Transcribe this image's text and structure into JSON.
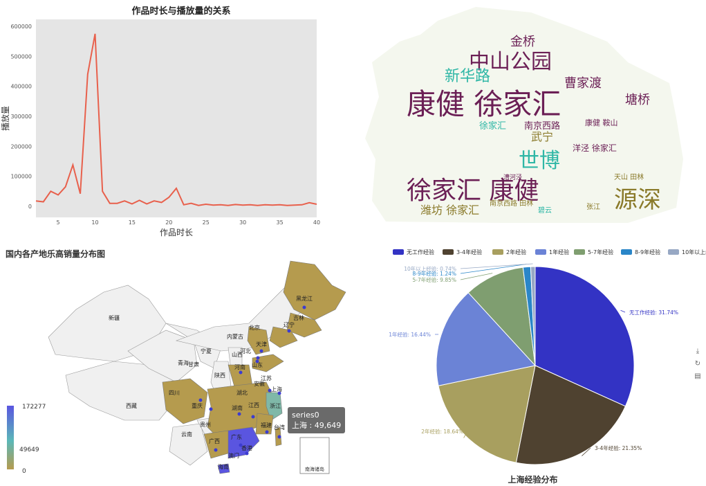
{
  "line_chart": {
    "title": "作品时长与播放量的关系",
    "xlabel": "作品时长",
    "ylabel": "播放量",
    "line_color": "#e8604c",
    "bg_color": "#e5e5e5",
    "x_ticks": [
      "5",
      "10",
      "15",
      "20",
      "25",
      "30",
      "35",
      "40"
    ],
    "y_ticks": [
      "0",
      "100000",
      "200000",
      "300000",
      "400000",
      "500000",
      "600000"
    ]
  },
  "wordcloud": {
    "words": [
      {
        "text": "康健 徐家汇",
        "color": "#6b1f55",
        "size": 42
      },
      {
        "text": "徐家汇 康健",
        "color": "#6b1f55",
        "size": 36
      },
      {
        "text": "中山公园",
        "color": "#6b1f55",
        "size": 30
      },
      {
        "text": "源深",
        "color": "#8a7a2a",
        "size": 34
      },
      {
        "text": "世博",
        "color": "#2fb7a6",
        "size": 30
      },
      {
        "text": "新华路",
        "color": "#2fb7a6",
        "size": 22
      },
      {
        "text": "曹家渡",
        "color": "#6b1f55",
        "size": 18
      },
      {
        "text": "金桥",
        "color": "#6b1f55",
        "size": 18
      },
      {
        "text": "塘桥",
        "color": "#6b1f55",
        "size": 18
      },
      {
        "text": "武宁",
        "color": "#8a7a2a",
        "size": 16
      },
      {
        "text": "潍坊 徐家汇",
        "color": "#8a7a2a",
        "size": 16
      },
      {
        "text": "南京西路",
        "color": "#6b1f55",
        "size": 13
      },
      {
        "text": "徐家汇",
        "color": "#2fb7a6",
        "size": 13
      },
      {
        "text": "洋泾 徐家汇",
        "color": "#6b1f55",
        "size": 12
      },
      {
        "text": "天山 田林",
        "color": "#8a7a2a",
        "size": 10
      },
      {
        "text": "康健 鞍山",
        "color": "#6b1f55",
        "size": 11
      },
      {
        "text": "南京西路 田林",
        "color": "#8a7a2a",
        "size": 10
      },
      {
        "text": "张江",
        "color": "#8a7a2a",
        "size": 10
      },
      {
        "text": "碧云",
        "color": "#2fb7a6",
        "size": 10
      },
      {
        "text": "漕河泾",
        "color": "#6b1f55",
        "size": 9
      }
    ]
  },
  "map": {
    "title": "国内各产地乐高销量分布图",
    "visualmap": {
      "max": "172277",
      "mid": "49649",
      "min": "0"
    },
    "tooltip": {
      "series": "series0",
      "text": "上海 : 49,649"
    },
    "inset_label": "南海诸岛",
    "colors": {
      "high": "#5a55e0",
      "mid": "#5bb8b8",
      "low": "#b59b4e",
      "none": "#f0f0f0"
    },
    "provinces": [
      {
        "name": "新疆"
      },
      {
        "name": "西藏"
      },
      {
        "name": "青海"
      },
      {
        "name": "甘肃"
      },
      {
        "name": "内蒙古"
      },
      {
        "name": "黑龙江"
      },
      {
        "name": "吉林"
      },
      {
        "name": "辽宁"
      },
      {
        "name": "宁夏"
      },
      {
        "name": "山西"
      },
      {
        "name": "河北"
      },
      {
        "name": "北京"
      },
      {
        "name": "天津"
      },
      {
        "name": "山东"
      },
      {
        "name": "陕西"
      },
      {
        "name": "河南"
      },
      {
        "name": "江苏"
      },
      {
        "name": "安徽"
      },
      {
        "name": "上海"
      },
      {
        "name": "四川"
      },
      {
        "name": "湖北"
      },
      {
        "name": "浙江"
      },
      {
        "name": "重庆"
      },
      {
        "name": "湖南"
      },
      {
        "name": "江西"
      },
      {
        "name": "贵州"
      },
      {
        "name": "福建"
      },
      {
        "name": "云南"
      },
      {
        "name": "广西"
      },
      {
        "name": "广东"
      },
      {
        "name": "台湾"
      },
      {
        "name": "香港"
      },
      {
        "name": "澳门"
      },
      {
        "name": "海南"
      }
    ]
  },
  "pie": {
    "title": "上海经验分布",
    "legend": [
      {
        "name": "无工作经验",
        "color": "#3333c4"
      },
      {
        "name": "3-4年经验",
        "color": "#4f4230"
      },
      {
        "name": "2年经验",
        "color": "#a89f5f"
      },
      {
        "name": "1年经验",
        "color": "#6b83d6"
      },
      {
        "name": "5-7年经验",
        "color": "#7f9e70"
      },
      {
        "name": "8-9年经验",
        "color": "#2a86c8"
      },
      {
        "name": "10年以上经验",
        "color": "#97a8c4"
      }
    ],
    "labels": [
      "无工作经验: 31.74%",
      "3-4年经验: 21.35%",
      "2年经验: 18.64%",
      "1年经验: 16.44%",
      "5-7年经验: 9.85%",
      "8-9年经验: 1.24%",
      "10年以上经验: 0.74%"
    ]
  },
  "chart_data": [
    {
      "type": "line",
      "title": "作品时长与播放量的关系",
      "xlabel": "作品时长",
      "ylabel": "播放量",
      "x": [
        2,
        3,
        4,
        5,
        6,
        7,
        8,
        9,
        10,
        11,
        12,
        13,
        14,
        15,
        16,
        17,
        18,
        19,
        20,
        21,
        22,
        23,
        24,
        25,
        26,
        27,
        28,
        29,
        30,
        31,
        32,
        33,
        34,
        35,
        36,
        37,
        38,
        39,
        40
      ],
      "values": [
        18000,
        15000,
        50000,
        38000,
        65000,
        138000,
        42000,
        440000,
        575000,
        50000,
        10000,
        10000,
        18000,
        8000,
        20000,
        8000,
        18000,
        13000,
        30000,
        60000,
        5000,
        10000,
        3000,
        7000,
        4000,
        5000,
        3000,
        6000,
        4000,
        5000,
        3000,
        5000,
        4000,
        5000,
        3000,
        4000,
        5000,
        12000,
        7000
      ],
      "xlim": [
        2,
        40
      ],
      "ylim": [
        0,
        600000
      ]
    },
    {
      "type": "pie",
      "title": "上海经验分布",
      "categories": [
        "无工作经验",
        "3-4年经验",
        "2年经验",
        "1年经验",
        "5-7年经验",
        "8-9年经验",
        "10年以上经验"
      ],
      "values": [
        31.74,
        21.35,
        18.64,
        16.44,
        9.85,
        1.24,
        0.74
      ]
    }
  ]
}
